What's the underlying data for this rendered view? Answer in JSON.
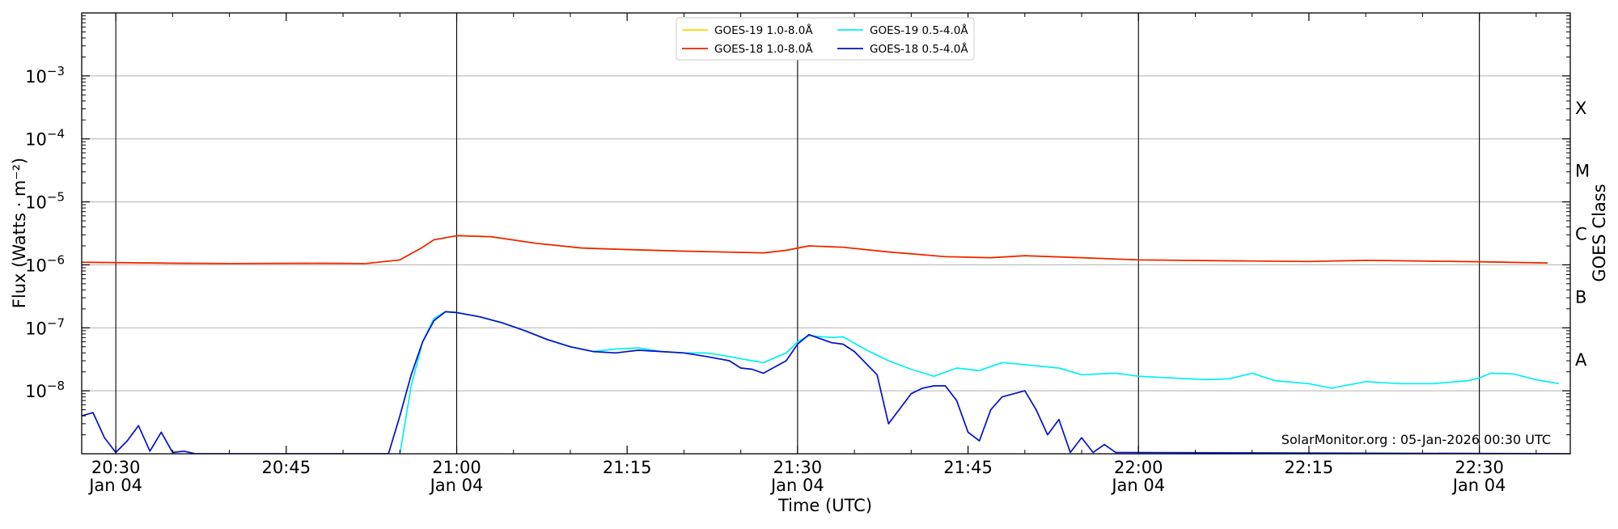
{
  "chart_data": {
    "type": "line",
    "xlabel": "Time (UTC)",
    "ylabel": "Flux (Watts · m⁻²)",
    "ylabel_right": "GOES Class",
    "y_scale": "log",
    "ylim": [
      1e-09,
      0.01
    ],
    "xlim": [
      "20:27",
      "22:38"
    ],
    "grid": "horizontal",
    "legend_placement": "top-center",
    "watermark": "SolarMonitor.org : 05-Jan-2026 00:30 UTC",
    "y_ticks": [
      {
        "value": 1e-08,
        "base": "10",
        "exp": "−8"
      },
      {
        "value": 1e-07,
        "base": "10",
        "exp": "−7"
      },
      {
        "value": 1e-06,
        "base": "10",
        "exp": "−6"
      },
      {
        "value": 1e-05,
        "base": "10",
        "exp": "−5"
      },
      {
        "value": 0.0001,
        "base": "10",
        "exp": "−4"
      },
      {
        "value": 0.001,
        "base": "10",
        "exp": "−3"
      }
    ],
    "x_ticks": [
      {
        "time": "20:30",
        "label": "20:30",
        "sublabel": "Jan 04"
      },
      {
        "time": "20:45",
        "label": "20:45",
        "sublabel": ""
      },
      {
        "time": "21:00",
        "label": "21:00",
        "sublabel": "Jan 04"
      },
      {
        "time": "21:15",
        "label": "21:15",
        "sublabel": ""
      },
      {
        "time": "21:30",
        "label": "21:30",
        "sublabel": "Jan 04"
      },
      {
        "time": "21:45",
        "label": "21:45",
        "sublabel": ""
      },
      {
        "time": "22:00",
        "label": "22:00",
        "sublabel": "Jan 04"
      },
      {
        "time": "22:15",
        "label": "22:15",
        "sublabel": ""
      },
      {
        "time": "22:30",
        "label": "22:30",
        "sublabel": "Jan 04"
      }
    ],
    "vertical_lines": [
      "20:30",
      "21:00",
      "21:30",
      "22:00",
      "22:30"
    ],
    "goes_classes": [
      {
        "label": "A",
        "value": 3.16e-08
      },
      {
        "label": "B",
        "value": 3.16e-07
      },
      {
        "label": "C",
        "value": 3.16e-06
      },
      {
        "label": "M",
        "value": 3.16e-05
      },
      {
        "label": "X",
        "value": 0.000316
      }
    ],
    "series": [
      {
        "name": "GOES-19 1.0-8.0Å",
        "color": "#ffd700",
        "points": [
          [
            "20:27",
            1.1e-06
          ],
          [
            "20:36",
            1.06e-06
          ],
          [
            "20:40",
            1.05e-06
          ],
          [
            "20:48",
            1.06e-06
          ],
          [
            "20:52",
            1.05e-06
          ],
          [
            "20:55",
            1.2e-06
          ],
          [
            "20:57",
            1.9e-06
          ],
          [
            "20:58",
            2.5e-06
          ],
          [
            "21:00",
            2.9e-06
          ],
          [
            "21:03",
            2.8e-06
          ],
          [
            "21:07",
            2.2e-06
          ],
          [
            "21:11",
            1.85e-06
          ],
          [
            "21:15",
            1.75e-06
          ],
          [
            "21:20",
            1.65e-06
          ],
          [
            "21:27",
            1.55e-06
          ],
          [
            "21:29",
            1.7e-06
          ],
          [
            "21:31",
            2e-06
          ],
          [
            "21:34",
            1.9e-06
          ],
          [
            "21:38",
            1.6e-06
          ],
          [
            "21:43",
            1.35e-06
          ],
          [
            "21:47",
            1.3e-06
          ],
          [
            "21:50",
            1.4e-06
          ],
          [
            "21:55",
            1.3e-06
          ],
          [
            "22:00",
            1.2e-06
          ],
          [
            "22:10",
            1.15e-06
          ],
          [
            "22:15",
            1.13e-06
          ],
          [
            "22:20",
            1.18e-06
          ],
          [
            "22:30",
            1.12e-06
          ],
          [
            "22:36",
            1.07e-06
          ]
        ]
      },
      {
        "name": "GOES-18 1.0-8.0Å",
        "color": "#ee2200",
        "points": [
          [
            "20:27",
            1.1e-06
          ],
          [
            "20:36",
            1.06e-06
          ],
          [
            "20:40",
            1.05e-06
          ],
          [
            "20:48",
            1.06e-06
          ],
          [
            "20:52",
            1.05e-06
          ],
          [
            "20:55",
            1.2e-06
          ],
          [
            "20:57",
            1.9e-06
          ],
          [
            "20:58",
            2.5e-06
          ],
          [
            "21:00",
            2.9e-06
          ],
          [
            "21:03",
            2.8e-06
          ],
          [
            "21:07",
            2.2e-06
          ],
          [
            "21:11",
            1.85e-06
          ],
          [
            "21:15",
            1.75e-06
          ],
          [
            "21:20",
            1.65e-06
          ],
          [
            "21:27",
            1.55e-06
          ],
          [
            "21:29",
            1.7e-06
          ],
          [
            "21:31",
            2e-06
          ],
          [
            "21:34",
            1.9e-06
          ],
          [
            "21:38",
            1.6e-06
          ],
          [
            "21:43",
            1.35e-06
          ],
          [
            "21:47",
            1.3e-06
          ],
          [
            "21:50",
            1.4e-06
          ],
          [
            "21:55",
            1.3e-06
          ],
          [
            "22:00",
            1.2e-06
          ],
          [
            "22:10",
            1.15e-06
          ],
          [
            "22:15",
            1.13e-06
          ],
          [
            "22:20",
            1.18e-06
          ],
          [
            "22:30",
            1.12e-06
          ],
          [
            "22:36",
            1.07e-06
          ]
        ]
      },
      {
        "name": "GOES-19 0.5-4.0Å",
        "color": "#00f0f0",
        "points": [
          [
            "20:55",
            1e-09
          ],
          [
            "20:56",
            1.2e-08
          ],
          [
            "20:57",
            6e-08
          ],
          [
            "20:58",
            1.4e-07
          ],
          [
            "20:59",
            1.8e-07
          ],
          [
            "21:00",
            1.75e-07
          ],
          [
            "21:02",
            1.5e-07
          ],
          [
            "21:04",
            1.2e-07
          ],
          [
            "21:06",
            9e-08
          ],
          [
            "21:08",
            6.5e-08
          ],
          [
            "21:10",
            5e-08
          ],
          [
            "21:12",
            4.2e-08
          ],
          [
            "21:14",
            4.6e-08
          ],
          [
            "21:16",
            4.8e-08
          ],
          [
            "21:18",
            4.2e-08
          ],
          [
            "21:20",
            4e-08
          ],
          [
            "21:22",
            4e-08
          ],
          [
            "21:24",
            3.5e-08
          ],
          [
            "21:26",
            3e-08
          ],
          [
            "21:27",
            2.8e-08
          ],
          [
            "21:29",
            4e-08
          ],
          [
            "21:30",
            6e-08
          ],
          [
            "21:31",
            7.5e-08
          ],
          [
            "21:33",
            7e-08
          ],
          [
            "21:34",
            7.2e-08
          ],
          [
            "21:36",
            4.5e-08
          ],
          [
            "21:38",
            3e-08
          ],
          [
            "21:40",
            2.2e-08
          ],
          [
            "21:42",
            1.7e-08
          ],
          [
            "21:44",
            2.3e-08
          ],
          [
            "21:46",
            2.1e-08
          ],
          [
            "21:48",
            2.8e-08
          ],
          [
            "21:50",
            2.6e-08
          ],
          [
            "21:53",
            2.3e-08
          ],
          [
            "21:55",
            1.8e-08
          ],
          [
            "21:58",
            1.9e-08
          ],
          [
            "22:00",
            1.7e-08
          ],
          [
            "22:03",
            1.6e-08
          ],
          [
            "22:06",
            1.5e-08
          ],
          [
            "22:08",
            1.55e-08
          ],
          [
            "22:10",
            1.9e-08
          ],
          [
            "22:12",
            1.45e-08
          ],
          [
            "22:15",
            1.3e-08
          ],
          [
            "22:17",
            1.1e-08
          ],
          [
            "22:20",
            1.4e-08
          ],
          [
            "22:23",
            1.3e-08
          ],
          [
            "22:26",
            1.3e-08
          ],
          [
            "22:29",
            1.45e-08
          ],
          [
            "22:30",
            1.6e-08
          ],
          [
            "22:31",
            1.9e-08
          ],
          [
            "22:33",
            1.85e-08
          ],
          [
            "22:35",
            1.5e-08
          ],
          [
            "22:37",
            1.3e-08
          ]
        ]
      },
      {
        "name": "GOES-18 0.5-4.0Å",
        "color": "#0010cc",
        "points": [
          [
            "20:27",
            4e-09
          ],
          [
            "20:28",
            4.5e-09
          ],
          [
            "20:29",
            1.8e-09
          ],
          [
            "20:30",
            1.05e-09
          ],
          [
            "20:31",
            1.6e-09
          ],
          [
            "20:32",
            2.8e-09
          ],
          [
            "20:33",
            1.1e-09
          ],
          [
            "20:34",
            2.2e-09
          ],
          [
            "20:35",
            1.05e-09
          ],
          [
            "20:36",
            1.1e-09
          ],
          [
            "20:37",
            1e-09
          ],
          [
            "20:54",
            1e-09
          ],
          [
            "20:55",
            4e-09
          ],
          [
            "20:56",
            1.8e-08
          ],
          [
            "20:57",
            6e-08
          ],
          [
            "20:58",
            1.3e-07
          ],
          [
            "20:59",
            1.8e-07
          ],
          [
            "21:00",
            1.75e-07
          ],
          [
            "21:02",
            1.5e-07
          ],
          [
            "21:04",
            1.2e-07
          ],
          [
            "21:06",
            9e-08
          ],
          [
            "21:08",
            6.5e-08
          ],
          [
            "21:10",
            5e-08
          ],
          [
            "21:12",
            4.2e-08
          ],
          [
            "21:14",
            4e-08
          ],
          [
            "21:16",
            4.4e-08
          ],
          [
            "21:18",
            4.2e-08
          ],
          [
            "21:20",
            4e-08
          ],
          [
            "21:22",
            3.5e-08
          ],
          [
            "21:24",
            3e-08
          ],
          [
            "21:25",
            2.3e-08
          ],
          [
            "21:26",
            2.2e-08
          ],
          [
            "21:27",
            1.9e-08
          ],
          [
            "21:29",
            3e-08
          ],
          [
            "21:30",
            5.5e-08
          ],
          [
            "21:31",
            7.8e-08
          ],
          [
            "21:33",
            5.8e-08
          ],
          [
            "21:34",
            5.5e-08
          ],
          [
            "21:35",
            4.2e-08
          ],
          [
            "21:37",
            1.8e-08
          ],
          [
            "21:38",
            3e-09
          ],
          [
            "21:40",
            9e-09
          ],
          [
            "21:41",
            1.1e-08
          ],
          [
            "21:42",
            1.2e-08
          ],
          [
            "21:43",
            1.2e-08
          ],
          [
            "21:44",
            7e-09
          ],
          [
            "21:45",
            2.2e-09
          ],
          [
            "21:46",
            1.6e-09
          ],
          [
            "21:47",
            5e-09
          ],
          [
            "21:48",
            8e-09
          ],
          [
            "21:50",
            1e-08
          ],
          [
            "21:51",
            5e-09
          ],
          [
            "21:52",
            2e-09
          ],
          [
            "21:53",
            3.5e-09
          ],
          [
            "21:54",
            1.05e-09
          ],
          [
            "21:55",
            1.8e-09
          ],
          [
            "21:56",
            1.05e-09
          ],
          [
            "21:57",
            1.4e-09
          ],
          [
            "21:58",
            1.05e-09
          ],
          [
            "22:38",
            1e-09
          ]
        ]
      }
    ]
  }
}
